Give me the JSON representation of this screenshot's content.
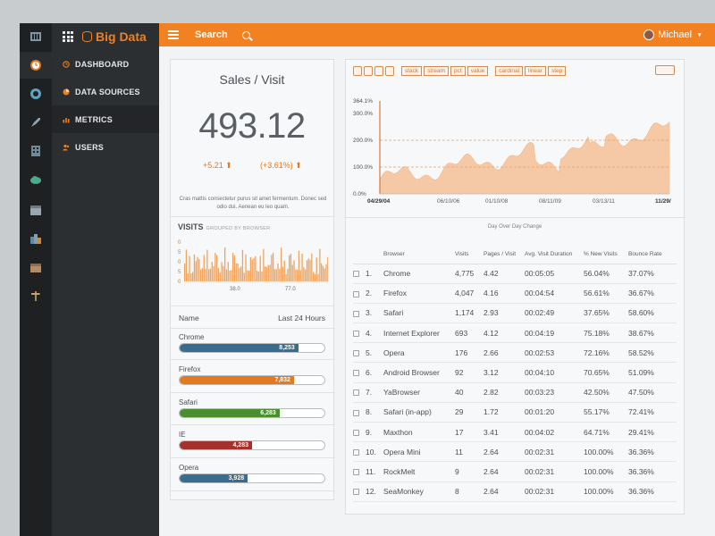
{
  "app": {
    "brand": "Big Data",
    "search_label": "Search",
    "user_name": "Michael",
    "accent_color": "#f28121"
  },
  "sidebar": {
    "items": [
      {
        "label": "DASHBOARD",
        "icon": "clock-icon"
      },
      {
        "label": "DATA SOURCES",
        "icon": "database-icon"
      },
      {
        "label": "METRICS",
        "icon": "bar-chart-icon"
      },
      {
        "label": "USERS",
        "icon": "users-icon"
      }
    ],
    "rail_icons": [
      "bank-icon",
      "clock-icon",
      "eye-icon",
      "rocket-icon",
      "building-icon",
      "cloud-icon",
      "calendar-icon",
      "city-icon",
      "archive-icon",
      "signpost-icon"
    ]
  },
  "kpi": {
    "title": "Sales / Visit",
    "value": "493.12",
    "delta_abs": "+5.21",
    "delta_pct": "(+3.61%)",
    "description": "Cras mattis consectetur purus sit amet fermentum. Donec sed odio dui. Aenean eu leo quam."
  },
  "visits": {
    "title": "VISITS",
    "subtitle": "GROUPED BY BROWSER",
    "spark_ticks": [
      "0",
      "5",
      "0",
      "5",
      "0"
    ],
    "spark_x_labels": [
      "38.0",
      "77.0"
    ],
    "name_header": "Name",
    "period_header": "Last 24 Hours",
    "bars": [
      {
        "label": "Chrome",
        "value": "8,253",
        "fraction": 0.82,
        "color": "#3a6c8f"
      },
      {
        "label": "Firefox",
        "value": "7,832",
        "fraction": 0.79,
        "color": "#e37a1f"
      },
      {
        "label": "Safari",
        "value": "6,283",
        "fraction": 0.69,
        "color": "#4b8e2e"
      },
      {
        "label": "IE",
        "value": "4,283",
        "fraction": 0.5,
        "color": "#a6302b"
      },
      {
        "label": "Opera",
        "value": "3,928",
        "fraction": 0.47,
        "color": "#3a6c8f"
      }
    ]
  },
  "toolbar": {
    "modes": [
      "stack",
      "stream",
      "pct",
      "value"
    ],
    "interp": [
      "cardinal",
      "linear",
      "step"
    ]
  },
  "area_chart": {
    "y_labels": [
      "364.1%",
      "300.0%",
      "200.0%",
      "100.0%",
      "0.0%"
    ],
    "x_labels": [
      "04/29/04",
      "06/10/06",
      "01/10/08",
      "08/11/09",
      "03/13/11",
      "11/29/"
    ],
    "caption": "Day Over Day Change"
  },
  "table": {
    "headers": [
      "Browser",
      "Visits",
      "Pages / Visit",
      "Avg. Visit Duration",
      "% New Visits",
      "Bounce Rate"
    ],
    "rows": [
      {
        "n": "1.",
        "browser": "Chrome",
        "visits": "4,775",
        "pages": "4.42",
        "duration": "00:05:05",
        "new": "56.04%",
        "bounce": "37.07%"
      },
      {
        "n": "2.",
        "browser": "Firefox",
        "visits": "4,047",
        "pages": "4.16",
        "duration": "00:04:54",
        "new": "56.61%",
        "bounce": "36.67%"
      },
      {
        "n": "3.",
        "browser": "Safari",
        "visits": "1,174",
        "pages": "2.93",
        "duration": "00:02:49",
        "new": "37.65%",
        "bounce": "58.60%"
      },
      {
        "n": "4.",
        "browser": "Internet Explorer",
        "visits": "693",
        "pages": "4.12",
        "duration": "00:04:19",
        "new": "75.18%",
        "bounce": "38.67%"
      },
      {
        "n": "5.",
        "browser": "Opera",
        "visits": "176",
        "pages": "2.66",
        "duration": "00:02:53",
        "new": "72.16%",
        "bounce": "58.52%"
      },
      {
        "n": "6.",
        "browser": "Android Browser",
        "visits": "92",
        "pages": "3.12",
        "duration": "00:04:10",
        "new": "70.65%",
        "bounce": "51.09%"
      },
      {
        "n": "7.",
        "browser": "YaBrowser",
        "visits": "40",
        "pages": "2.82",
        "duration": "00:03:23",
        "new": "42.50%",
        "bounce": "47.50%"
      },
      {
        "n": "8.",
        "browser": "Safari (in-app)",
        "visits": "29",
        "pages": "1.72",
        "duration": "00:01:20",
        "new": "55.17%",
        "bounce": "72.41%"
      },
      {
        "n": "9.",
        "browser": "Maxthon",
        "visits": "17",
        "pages": "3.41",
        "duration": "00:04:02",
        "new": "64.71%",
        "bounce": "29.41%"
      },
      {
        "n": "10.",
        "browser": "Opera Mini",
        "visits": "11",
        "pages": "2.64",
        "duration": "00:02:31",
        "new": "100.00%",
        "bounce": "36.36%"
      },
      {
        "n": "11.",
        "browser": "RockMelt",
        "visits": "9",
        "pages": "2.64",
        "duration": "00:02:31",
        "new": "100.00%",
        "bounce": "36.36%"
      },
      {
        "n": "12.",
        "browser": "SeaMonkey",
        "visits": "8",
        "pages": "2.64",
        "duration": "00:02:31",
        "new": "100.00%",
        "bounce": "36.36%"
      }
    ]
  }
}
